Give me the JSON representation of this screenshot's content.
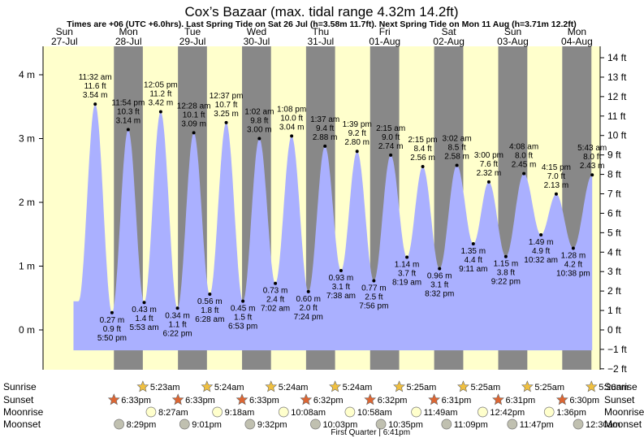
{
  "chart_data": {
    "type": "area",
    "title": "Cox’s Bazaar (max. tidal range 4.32m 14.2ft)",
    "subtitle": "Times are +06 (UTC +6.0hrs). Last Spring Tide on Sat 26 Jul (h=3.58m 11.7ft). Next Spring Tide on Mon 11 Aug (h=3.71m 12.2ft)",
    "ylim": [
      -0.32,
      4.32
    ],
    "y_left_ticks": [
      {
        "v": 4,
        "label": "4 m"
      },
      {
        "v": 3,
        "label": "3 m"
      },
      {
        "v": 2,
        "label": "2 m"
      },
      {
        "v": 1,
        "label": "1 m"
      },
      {
        "v": 0,
        "label": "0 m"
      }
    ],
    "y_right_ticks": [
      {
        "ft": 14,
        "label": "14 ft"
      },
      {
        "ft": 13,
        "label": "13 ft"
      },
      {
        "ft": 12,
        "label": "12 ft"
      },
      {
        "ft": 11,
        "label": "11 ft"
      },
      {
        "ft": 10,
        "label": "10 ft"
      },
      {
        "ft": 9,
        "label": "9 ft"
      },
      {
        "ft": 8,
        "label": "8 ft"
      },
      {
        "ft": 7,
        "label": "7 ft"
      },
      {
        "ft": 6,
        "label": "6 ft"
      },
      {
        "ft": 5,
        "label": "5 ft"
      },
      {
        "ft": 4,
        "label": "4 ft"
      },
      {
        "ft": 3,
        "label": "3 ft"
      },
      {
        "ft": 2,
        "label": "2 ft"
      },
      {
        "ft": 1,
        "label": "1 ft"
      },
      {
        "ft": 0,
        "label": "0 ft"
      },
      {
        "ft": -1,
        "label": "−1 ft"
      },
      {
        "ft": -2,
        "label": "−2 ft"
      }
    ],
    "days": [
      {
        "day": "Sun",
        "date": "27-Jul",
        "t": 0
      },
      {
        "day": "Mon",
        "date": "28-Jul",
        "t": 24
      },
      {
        "day": "Tue",
        "date": "29-Jul",
        "t": 48
      },
      {
        "day": "Wed",
        "date": "30-Jul",
        "t": 72
      },
      {
        "day": "Thu",
        "date": "31-Jul",
        "t": 96
      },
      {
        "day": "Fri",
        "date": "01-Aug",
        "t": 120
      },
      {
        "day": "Sat",
        "date": "02-Aug",
        "t": 144
      },
      {
        "day": "Sun",
        "date": "03-Aug",
        "t": 168
      },
      {
        "day": "Mon",
        "date": "04-Aug",
        "t": 192
      }
    ],
    "tides": [
      {
        "t": 11.53,
        "h": 3.54,
        "time": "11:32 am",
        "ft": "11.6 ft",
        "m": "3.54 m",
        "type": "high"
      },
      {
        "t": 17.83,
        "h": 0.27,
        "time": "5:50 pm",
        "ft": "0.9 ft",
        "m": "0.27 m",
        "type": "low"
      },
      {
        "t": 23.9,
        "h": 3.14,
        "time": "11:54 pm",
        "ft": "10.3 ft",
        "m": "3.14 m",
        "type": "high"
      },
      {
        "t": 29.88,
        "h": 0.43,
        "time": "5:53 am",
        "ft": "1.4 ft",
        "m": "0.43 m",
        "type": "low"
      },
      {
        "t": 36.08,
        "h": 3.42,
        "time": "12:05 pm",
        "ft": "11.2 ft",
        "m": "3.42 m",
        "type": "high"
      },
      {
        "t": 42.37,
        "h": 0.34,
        "time": "6:22 pm",
        "ft": "1.1 ft",
        "m": "0.34 m",
        "type": "low"
      },
      {
        "t": 48.47,
        "h": 3.09,
        "time": "12:28 am",
        "ft": "10.1 ft",
        "m": "3.09 m",
        "type": "high"
      },
      {
        "t": 54.47,
        "h": 0.56,
        "time": "6:28 am",
        "ft": "1.8 ft",
        "m": "0.56 m",
        "type": "low"
      },
      {
        "t": 60.62,
        "h": 3.25,
        "time": "12:37 pm",
        "ft": "10.7 ft",
        "m": "3.25 m",
        "type": "high"
      },
      {
        "t": 66.88,
        "h": 0.45,
        "time": "6:53 pm",
        "ft": "1.5 ft",
        "m": "0.45 m",
        "type": "low"
      },
      {
        "t": 73.03,
        "h": 3.0,
        "time": "1:02 am",
        "ft": "9.8 ft",
        "m": "3.00 m",
        "type": "high"
      },
      {
        "t": 79.03,
        "h": 0.73,
        "time": "7:02 am",
        "ft": "2.4 ft",
        "m": "0.73 m",
        "type": "low"
      },
      {
        "t": 85.13,
        "h": 3.04,
        "time": "1:08 pm",
        "ft": "10.0 ft",
        "m": "3.04 m",
        "type": "high"
      },
      {
        "t": 91.4,
        "h": 0.6,
        "time": "7:24 pm",
        "ft": "2.0 ft",
        "m": "0.60 m",
        "type": "low"
      },
      {
        "t": 97.62,
        "h": 2.88,
        "time": "1:37 am",
        "ft": "9.4 ft",
        "m": "2.88 m",
        "type": "high"
      },
      {
        "t": 103.63,
        "h": 0.93,
        "time": "7:38 am",
        "ft": "3.1 ft",
        "m": "0.93 m",
        "type": "low"
      },
      {
        "t": 109.65,
        "h": 2.8,
        "time": "1:39 pm",
        "ft": "9.2 ft",
        "m": "2.80 m",
        "type": "high"
      },
      {
        "t": 115.93,
        "h": 0.77,
        "time": "7:56 pm",
        "ft": "2.5 ft",
        "m": "0.77 m",
        "type": "low"
      },
      {
        "t": 122.25,
        "h": 2.74,
        "time": "2:15 am",
        "ft": "9.0 ft",
        "m": "2.74 m",
        "type": "high"
      },
      {
        "t": 128.32,
        "h": 1.14,
        "time": "8:19 am",
        "ft": "3.7 ft",
        "m": "1.14 m",
        "type": "low"
      },
      {
        "t": 134.25,
        "h": 2.56,
        "time": "2:15 pm",
        "ft": "8.4 ft",
        "m": "2.56 m",
        "type": "high"
      },
      {
        "t": 140.53,
        "h": 0.96,
        "time": "8:32 pm",
        "ft": "3.1 ft",
        "m": "0.96 m",
        "type": "low"
      },
      {
        "t": 147.03,
        "h": 2.58,
        "time": "3:02 am",
        "ft": "8.5 ft",
        "m": "2.58 m",
        "type": "high"
      },
      {
        "t": 153.18,
        "h": 1.35,
        "time": "9:11 am",
        "ft": "4.4 ft",
        "m": "1.35 m",
        "type": "low"
      },
      {
        "t": 159.0,
        "h": 2.32,
        "time": "3:00 pm",
        "ft": "7.6 ft",
        "m": "2.32 m",
        "type": "high"
      },
      {
        "t": 165.37,
        "h": 1.15,
        "time": "9:22 pm",
        "ft": "3.8 ft",
        "m": "1.15 m",
        "type": "low"
      },
      {
        "t": 172.13,
        "h": 2.45,
        "time": "4:08 am",
        "ft": "8.0 ft",
        "m": "2.45 m",
        "type": "high"
      },
      {
        "t": 178.53,
        "h": 1.49,
        "time": "10:32 am",
        "ft": "4.9 ft",
        "m": "1.49 m",
        "type": "low"
      },
      {
        "t": 184.25,
        "h": 2.13,
        "time": "4:15 pm",
        "ft": "7.0 ft",
        "m": "2.13 m",
        "type": "high"
      },
      {
        "t": 190.63,
        "h": 1.28,
        "time": "10:38 pm",
        "ft": "4.2 ft",
        "m": "1.28 m",
        "type": "low"
      },
      {
        "t": 197.72,
        "h": 2.43,
        "time": "5:43 am",
        "ft": "8.0 ft",
        "m": "2.43 m",
        "type": "high"
      }
    ],
    "sunrise": [
      {
        "t": 29.38,
        "time": "5:23am"
      },
      {
        "t": 53.4,
        "time": "5:24am"
      },
      {
        "t": 77.4,
        "time": "5:24am"
      },
      {
        "t": 101.4,
        "time": "5:24am"
      },
      {
        "t": 125.42,
        "time": "5:25am"
      },
      {
        "t": 149.42,
        "time": "5:25am"
      },
      {
        "t": 173.42,
        "time": "5:25am"
      },
      {
        "t": 197.43,
        "time": "5:26am"
      }
    ],
    "sunset": [
      {
        "t": 18.55,
        "time": "6:33pm"
      },
      {
        "t": 42.55,
        "time": "6:33pm"
      },
      {
        "t": 66.55,
        "time": "6:33pm"
      },
      {
        "t": 90.53,
        "time": "6:32pm"
      },
      {
        "t": 114.53,
        "time": "6:32pm"
      },
      {
        "t": 138.52,
        "time": "6:31pm"
      },
      {
        "t": 162.52,
        "time": "6:31pm"
      },
      {
        "t": 186.5,
        "time": "6:30pm"
      }
    ],
    "moonrise": [
      {
        "t": 32.45,
        "time": "8:27am"
      },
      {
        "t": 57.3,
        "time": "9:18am"
      },
      {
        "t": 82.13,
        "time": "10:08am"
      },
      {
        "t": 106.97,
        "time": "10:58am"
      },
      {
        "t": 131.82,
        "time": "11:49am"
      },
      {
        "t": 156.7,
        "time": "12:42pm"
      },
      {
        "t": 181.6,
        "time": "1:36pm"
      }
    ],
    "moonset": [
      {
        "t": 20.48,
        "time": "8:29pm"
      },
      {
        "t": 45.02,
        "time": "9:01pm"
      },
      {
        "t": 69.53,
        "time": "9:32pm"
      },
      {
        "t": 94.05,
        "time": "10:03pm"
      },
      {
        "t": 118.58,
        "time": "10:35pm"
      },
      {
        "t": 143.15,
        "time": "11:09pm"
      },
      {
        "t": 167.78,
        "time": "11:47pm"
      },
      {
        "t": 192.5,
        "time": "12:30am"
      }
    ],
    "moon_phase": {
      "t": 114.68,
      "label": "First Quarter | 6:41pm"
    },
    "row_labels": {
      "sunrise": "Sunrise",
      "sunset": "Sunset",
      "moonrise": "Moonrise",
      "moonset": "Moonset"
    },
    "colors": {
      "day_bg": "#ffffcc",
      "night_bg": "#888888",
      "tide_fill": "#aab0ff",
      "date_text": "#cc0000",
      "sun_icon": "#f0c040",
      "sunset_icon": "#dd6633",
      "moonrise_icon": "#ffffcc",
      "moonset_icon": "#c0c0b0"
    }
  }
}
